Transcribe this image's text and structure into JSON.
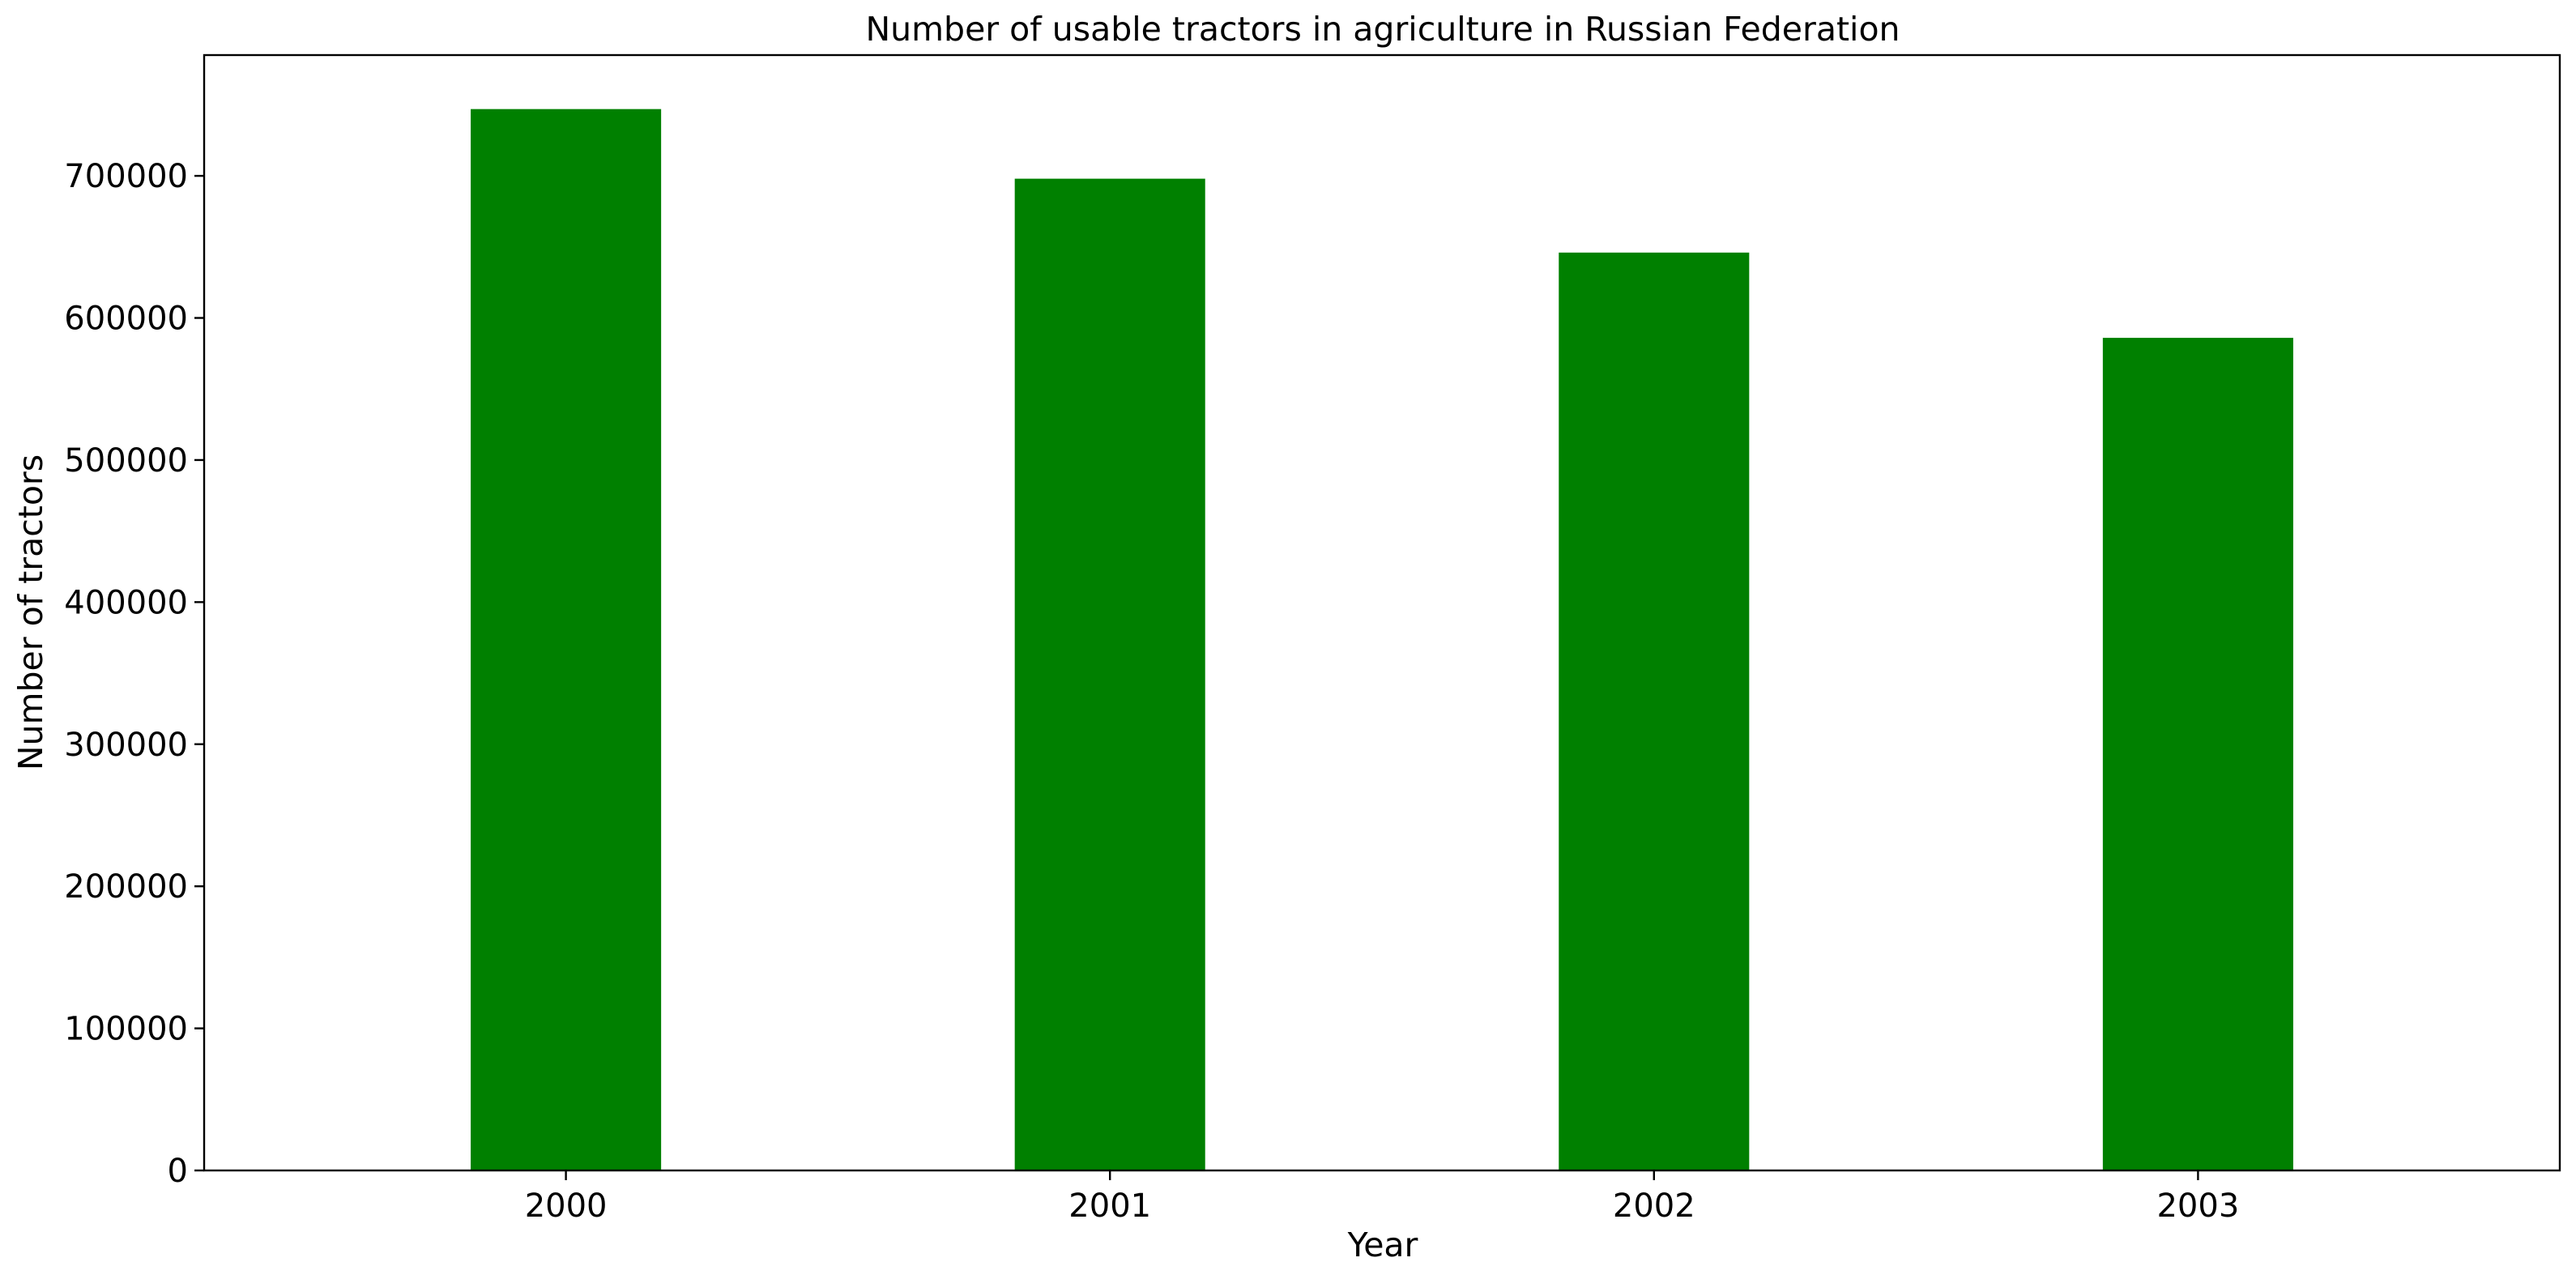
{
  "chart_data": {
    "type": "bar",
    "title": "Number of usable tractors in agriculture in Russian Federation",
    "xlabel": "Year",
    "ylabel": "Number of tractors",
    "categories": [
      "2000",
      "2001",
      "2002",
      "2003"
    ],
    "values": [
      747000,
      698000,
      646000,
      586000
    ],
    "ylim": [
      0,
      785000
    ],
    "yticks": [
      0,
      100000,
      200000,
      300000,
      400000,
      500000,
      600000,
      700000
    ],
    "ytick_labels": [
      "0",
      "100000",
      "200000",
      "300000",
      "400000",
      "500000",
      "600000",
      "700000"
    ],
    "bar_color": "#008000",
    "grid": false,
    "legend": "none"
  }
}
